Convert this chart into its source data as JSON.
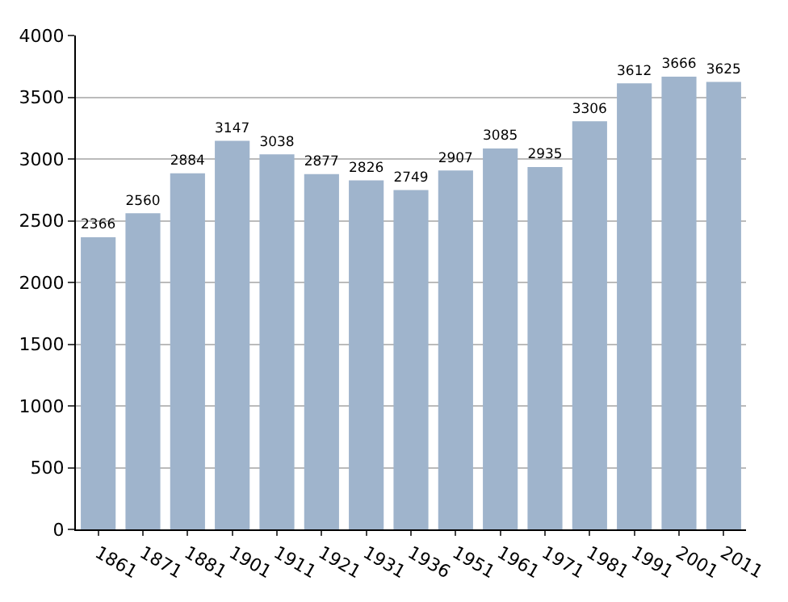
{
  "chart_data": {
    "type": "bar",
    "categories": [
      "1861",
      "1871",
      "1881",
      "1901",
      "1911",
      "1921",
      "1931",
      "1936",
      "1951",
      "1961",
      "1971",
      "1981",
      "1991",
      "2001",
      "2011"
    ],
    "values": [
      2366,
      2560,
      2884,
      3147,
      3038,
      2877,
      2826,
      2749,
      2907,
      3085,
      2935,
      3306,
      3612,
      3666,
      3625
    ],
    "color": "#9fb4cc",
    "data_labels": true,
    "ylim": [
      0,
      4000
    ],
    "yticks": [
      0,
      500,
      1000,
      1500,
      2000,
      2500,
      3000,
      3500,
      4000
    ],
    "grid": "y",
    "legend": false
  }
}
